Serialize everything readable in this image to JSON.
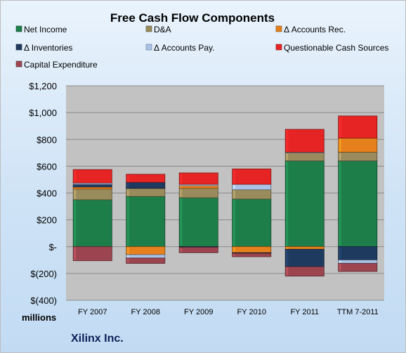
{
  "chart_data": {
    "type": "bar",
    "stacked": true,
    "title": "Free Cash Flow Components",
    "categories": [
      "FY 2007",
      "FY 2008",
      "FY 2009",
      "FY 2010",
      "FY 2011",
      "TTM 7-2011"
    ],
    "ylim": [
      -400,
      1200
    ],
    "yticks": [
      -400,
      -200,
      0,
      200,
      400,
      600,
      800,
      1000,
      1200
    ],
    "ytick_labels": [
      "$(400)",
      "$(200)",
      "$-",
      "$200",
      "$400",
      "$600",
      "$800",
      "$1,000",
      "$1,200"
    ],
    "unit_label": "millions",
    "company_label": "Xilinx Inc.",
    "grid": true,
    "legend_position": "top",
    "series": [
      {
        "name": "Net Income",
        "color": "#1e7e4a",
        "values": [
          350,
          375,
          365,
          355,
          640,
          640
        ]
      },
      {
        "name": "D&A",
        "color": "#9a8b5c",
        "values": [
          80,
          60,
          70,
          70,
          60,
          65
        ]
      },
      {
        "name": "Δ Accounts Rec.",
        "color": "#e6801c",
        "values": [
          15,
          -60,
          20,
          -45,
          -20,
          105
        ]
      },
      {
        "name": "Δ Inventories",
        "color": "#1f3a5f",
        "values": [
          20,
          45,
          -5,
          -5,
          -130,
          -100
        ]
      },
      {
        "name": "Δ Accounts Pay.",
        "color": "#a9c2e6",
        "values": [
          10,
          -25,
          10,
          40,
          5,
          -25
        ]
      },
      {
        "name": "Questionable Cash Sources",
        "color": "#e62424",
        "values": [
          100,
          60,
          85,
          115,
          170,
          165
        ]
      },
      {
        "name": "Capital Expenditure",
        "color": "#9c4550",
        "values": [
          -105,
          -40,
          -40,
          -25,
          -70,
          -60
        ]
      }
    ]
  }
}
